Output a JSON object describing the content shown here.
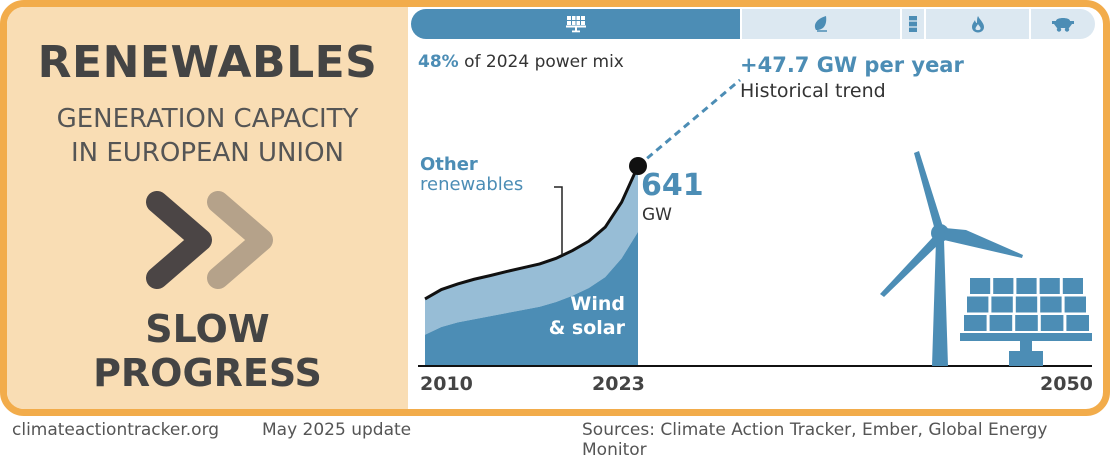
{
  "left_panel": {
    "title": "RENEWABLES",
    "subtitle_line1": "GENERATION CAPACITY",
    "subtitle_line2": "IN EUROPEAN UNION",
    "status_icon": "double-chevron-right-icon",
    "status_line1": "SLOW",
    "status_line2": "PROGRESS"
  },
  "power_mix": {
    "share_value": "48%",
    "share_text": "of 2024 power mix",
    "segments": [
      {
        "name": "solar-wind",
        "icon": "solar-panel-icon",
        "share": 0.48,
        "active": true
      },
      {
        "name": "bioenergy",
        "icon": "leaf-icon",
        "share": 0.23,
        "active": false
      },
      {
        "name": "oil",
        "icon": "oil-barrel-icon",
        "share": 0.035,
        "active": false
      },
      {
        "name": "gas",
        "icon": "flame-icon",
        "share": 0.15,
        "active": false
      },
      {
        "name": "coal",
        "icon": "coal-cart-icon",
        "share": 0.105,
        "active": false
      }
    ],
    "colors": {
      "active": "#4C8DB5",
      "inactive": "#DCE8F1"
    }
  },
  "trend": {
    "value": "+47.7 GW per year",
    "label": "Historical trend"
  },
  "labels": {
    "other_bold": "Other",
    "other_rest": "renewables",
    "wind_solar_1": "Wind",
    "wind_solar_2": "& solar",
    "current_value": "641",
    "current_unit": "GW"
  },
  "chart_data": {
    "type": "area",
    "title": "Renewables generation capacity in European Union",
    "x_ticks": [
      "2010",
      "2023",
      "2050"
    ],
    "x_range": [
      2010,
      2050
    ],
    "y_unit": "GW",
    "series": [
      {
        "name": "Wind & solar",
        "color": "#4C8DB5",
        "x": [
          2010,
          2011,
          2012,
          2013,
          2014,
          2015,
          2016,
          2017,
          2018,
          2019,
          2020,
          2021,
          2022,
          2023
        ],
        "values": [
          100,
          125,
          140,
          150,
          160,
          170,
          180,
          190,
          205,
          225,
          250,
          285,
          345,
          430
        ]
      },
      {
        "name": "Other renewables",
        "color": "#97BDD6",
        "x": [
          2010,
          2011,
          2012,
          2013,
          2014,
          2015,
          2016,
          2017,
          2018,
          2019,
          2020,
          2021,
          2022,
          2023
        ],
        "values": [
          115,
          120,
          123,
          128,
          130,
          133,
          135,
          137,
          140,
          145,
          150,
          160,
          180,
          211
        ]
      }
    ],
    "total_line": {
      "name": "Total renewables",
      "color": "#111111",
      "end_value": 641,
      "end_year": 2023
    },
    "trend_line": {
      "name": "Historical trend",
      "color": "#4C8DB5",
      "slope_gw_per_year": 47.7,
      "style": "dashed"
    },
    "ylim": [
      0,
      1100
    ]
  },
  "footer": {
    "website": "climateactiontracker.org",
    "update": "May 2025 update",
    "sources": "Sources: Climate Action Tracker, Ember, Global Energy Monitor"
  },
  "colors": {
    "frame": "#F2AC4B",
    "panel": "#F9DDB4",
    "text_dark": "#444444",
    "accent": "#4C8DB5",
    "chevron_dark": "#4B4545",
    "chevron_light": "#B5A28A"
  }
}
